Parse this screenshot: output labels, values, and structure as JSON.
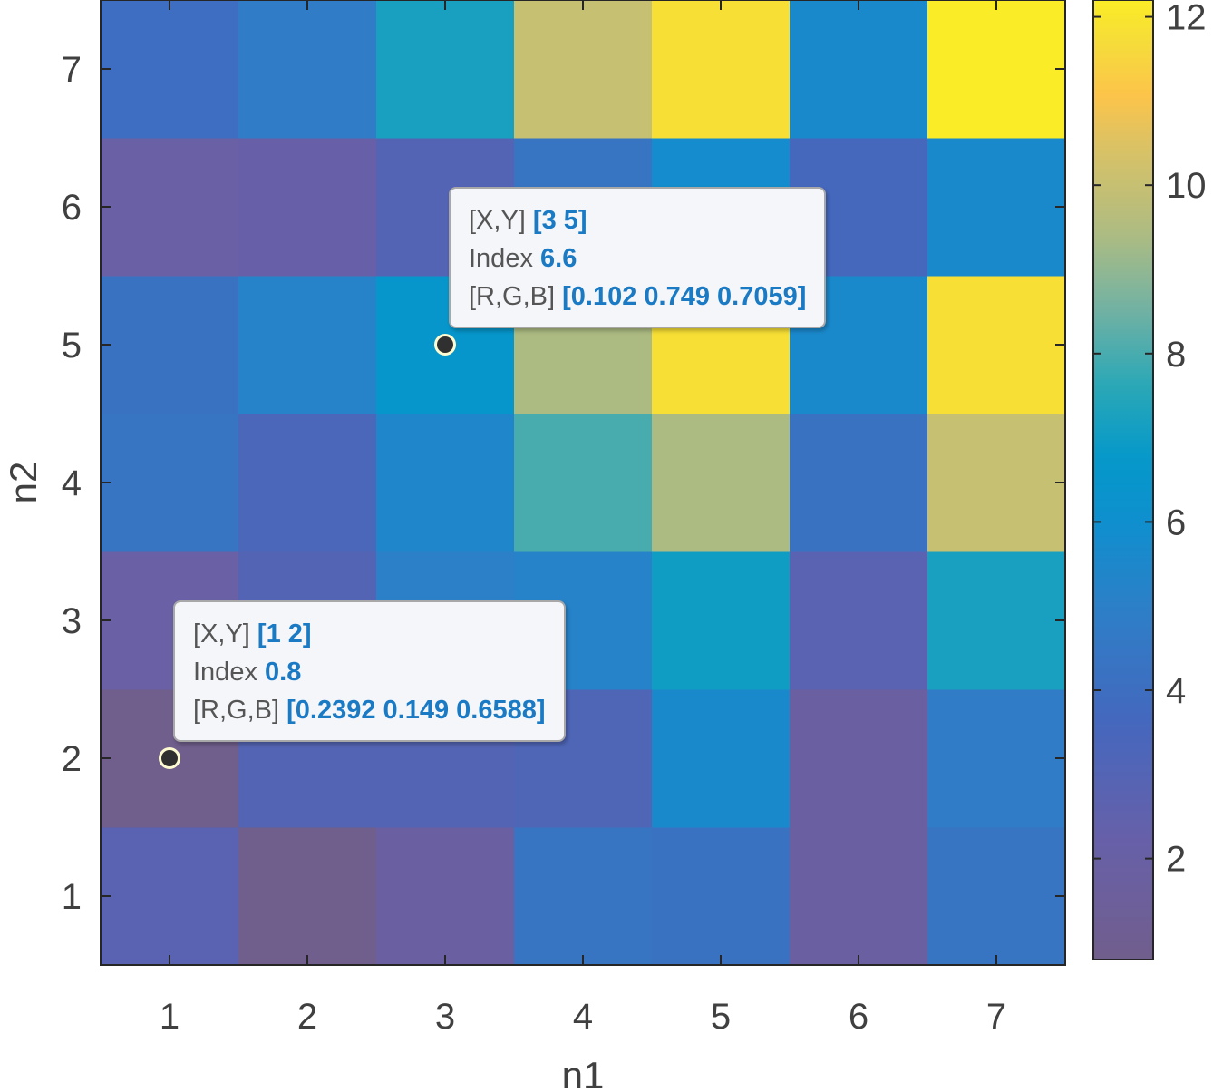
{
  "chart_data": {
    "type": "heatmap",
    "xlabel": "n1",
    "ylabel": "n2",
    "x": [
      1,
      2,
      3,
      4,
      5,
      6,
      7
    ],
    "y": [
      1,
      2,
      3,
      4,
      5,
      6,
      7
    ],
    "xlim": [
      0.5,
      7.5
    ],
    "ylim": [
      0.5,
      7.5
    ],
    "xticks": [
      "1",
      "2",
      "3",
      "4",
      "5",
      "6",
      "7"
    ],
    "yticks": [
      "1",
      "2",
      "3",
      "4",
      "5",
      "6",
      "7"
    ],
    "values": [
      [
        2.8,
        0.8,
        1.8,
        4.4,
        4.2,
        1.8,
        4.4
      ],
      [
        0.8,
        3.0,
        3.0,
        3.2,
        5.6,
        1.8,
        4.8
      ],
      [
        2.0,
        3.0,
        5.0,
        5.2,
        7.0,
        2.8,
        7.2
      ],
      [
        4.4,
        3.4,
        5.4,
        8.0,
        9.4,
        4.2,
        10.0
      ],
      [
        4.2,
        5.2,
        6.6,
        9.4,
        11.8,
        5.6,
        11.8
      ],
      [
        2.0,
        2.2,
        3.0,
        4.4,
        5.8,
        3.6,
        5.6
      ],
      [
        4.0,
        4.8,
        7.2,
        10.0,
        11.8,
        5.6,
        12.2
      ]
    ],
    "colorbar": {
      "range": [
        0.8,
        12.2
      ],
      "ticks": [
        "2",
        "4",
        "6",
        "8",
        "10",
        "12"
      ],
      "colormap": "parula"
    },
    "annotations": [
      {
        "x": 3,
        "y": 5,
        "row1_label": "[X,Y]",
        "row1_value": "[3 5]",
        "row2_label": "Index",
        "row2_value": "6.6",
        "row3_label": "[R,G,B]",
        "row3_value": "[0.102 0.749 0.7059]"
      },
      {
        "x": 1,
        "y": 2,
        "row1_label": "[X,Y]",
        "row1_value": "[1 2]",
        "row2_label": "Index",
        "row2_value": "0.8",
        "row3_label": "[R,G,B]",
        "row3_value": "[0.2392 0.149 0.6588]"
      }
    ]
  }
}
